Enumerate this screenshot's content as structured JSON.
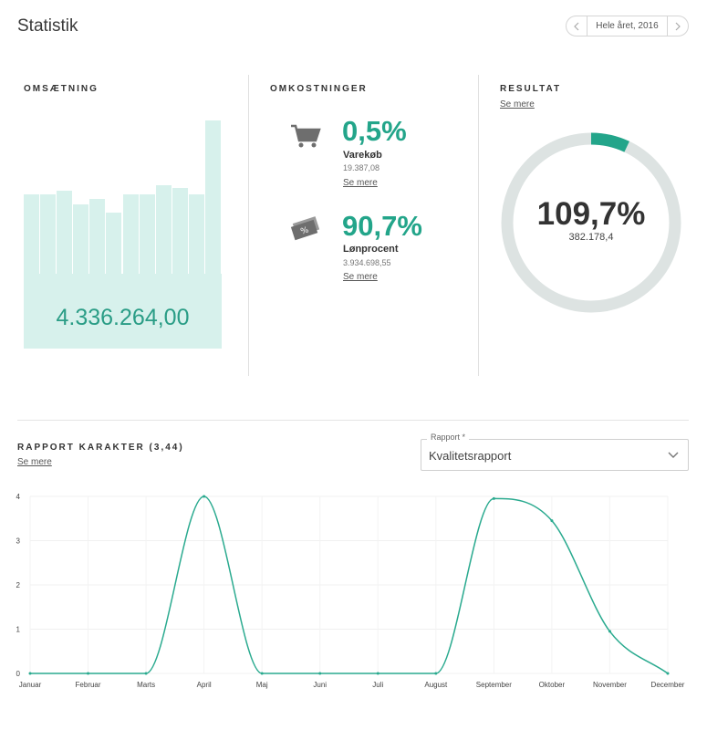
{
  "page": {
    "title": "Statistik"
  },
  "period": {
    "label": "Hele året, 2016"
  },
  "revenue": {
    "heading": "OMSÆTNING",
    "total": "4.336.264,00",
    "bars": [
      0.52,
      0.52,
      0.54,
      0.45,
      0.49,
      0.4,
      0.52,
      0.52,
      0.58,
      0.56,
      0.52,
      1.0
    ]
  },
  "costs": {
    "heading": "OMKOSTNINGER",
    "items": [
      {
        "pct": "0,5%",
        "name": "Varekøb",
        "amount": "19.387,08",
        "link": "Se mere",
        "icon": "cart-icon"
      },
      {
        "pct": "90,7%",
        "name": "Lønprocent",
        "amount": "3.934.698,55",
        "link": "Se mere",
        "icon": "money-icon"
      }
    ]
  },
  "result": {
    "heading": "RESULTAT",
    "link": "Se mere",
    "pct": "109,7%",
    "amount": "382.178,4",
    "gauge_fill_fraction": 0.07,
    "colors": {
      "fill": "#23a58a",
      "track": "#dde3e2"
    }
  },
  "report": {
    "heading": "RAPPORT KARAKTER (3,44)",
    "link": "Se mere",
    "select_label": "Rapport *",
    "select_value": "Kvalitetsrapport"
  },
  "chart_data": {
    "type": "line",
    "title": "",
    "xlabel": "",
    "ylabel": "",
    "ylim": [
      0,
      4
    ],
    "yticks": [
      "0",
      "1",
      "2",
      "3",
      "4"
    ],
    "categories": [
      "Januar",
      "Februar",
      "Marts",
      "April",
      "Maj",
      "Juni",
      "Juli",
      "August",
      "September",
      "Oktober",
      "November",
      "December"
    ],
    "series": [
      {
        "name": "Karakter",
        "color": "#2aaa8f",
        "values": [
          0,
          0,
          0,
          4,
          0,
          0,
          0,
          0,
          3.95,
          3.45,
          0.95,
          0
        ]
      }
    ]
  }
}
